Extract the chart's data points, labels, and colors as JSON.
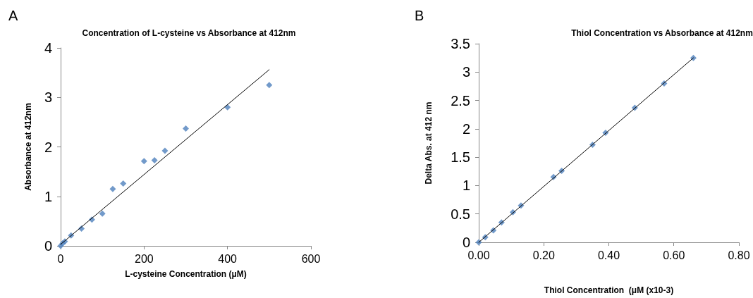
{
  "chart_data": [
    {
      "type": "scatter",
      "title": "Concentration of L-cysteine vs Absorbance at 412nm",
      "xlabel": "L-cysteine Concentration (μM)",
      "ylabel": "Absorbance at 412nm",
      "annotations": [
        "A"
      ],
      "marker": "diamond",
      "xlim": [
        0,
        600
      ],
      "xticks": [
        0,
        200,
        400,
        600
      ],
      "ylim": [
        0,
        4
      ],
      "yticks": [
        0,
        1,
        2,
        3,
        4
      ],
      "series": [
        {
          "color": "#4f81bd",
          "x": [
            0,
            5,
            10,
            25,
            50,
            75,
            100,
            125,
            150,
            200,
            225,
            250,
            300,
            400,
            500
          ],
          "values": [
            0,
            0.05,
            0.09,
            0.21,
            0.35,
            0.53,
            0.65,
            1.15,
            1.26,
            1.71,
            1.73,
            1.92,
            2.37,
            2.8,
            3.25
          ]
        },
        {
          "type": "line",
          "color": "#000000",
          "marker": "none",
          "x": [
            0,
            500
          ],
          "values": [
            0.03,
            3.56
          ]
        }
      ]
    },
    {
      "type": "scatter",
      "title": "Thiol Concentration vs Absorbance at 412nm",
      "xlabel": "Thiol Concentration  (μM (x10-3)",
      "ylabel": "Delta Abs. at 412 nm",
      "annotations": [
        "B"
      ],
      "marker": "diamond",
      "xlim": [
        0,
        0.8
      ],
      "xticks": [
        {
          "value": 0,
          "label": "0.00"
        },
        {
          "value": 0.2,
          "label": "0.20"
        },
        {
          "value": 0.4,
          "label": "0.40"
        },
        {
          "value": 0.6,
          "label": "0.60"
        },
        {
          "value": 0.8,
          "label": "0.80"
        }
      ],
      "ylim": [
        0,
        3.5
      ],
      "yticks": [
        0,
        0.5,
        1,
        1.5,
        2,
        2.5,
        3,
        3.5
      ],
      "series": [
        {
          "color": "#4f81bd",
          "x": [
            0,
            0.02,
            0.045,
            0.07,
            0.105,
            0.13,
            0.23,
            0.255,
            0.35,
            0.39,
            0.48,
            0.57,
            0.66
          ],
          "values": [
            0,
            0.09,
            0.21,
            0.35,
            0.53,
            0.65,
            1.15,
            1.26,
            1.72,
            1.93,
            2.37,
            2.8,
            3.25
          ]
        },
        {
          "type": "line",
          "color": "#000000",
          "marker": "none",
          "x": [
            0,
            0.66
          ],
          "values": [
            0,
            3.25
          ]
        }
      ]
    }
  ]
}
